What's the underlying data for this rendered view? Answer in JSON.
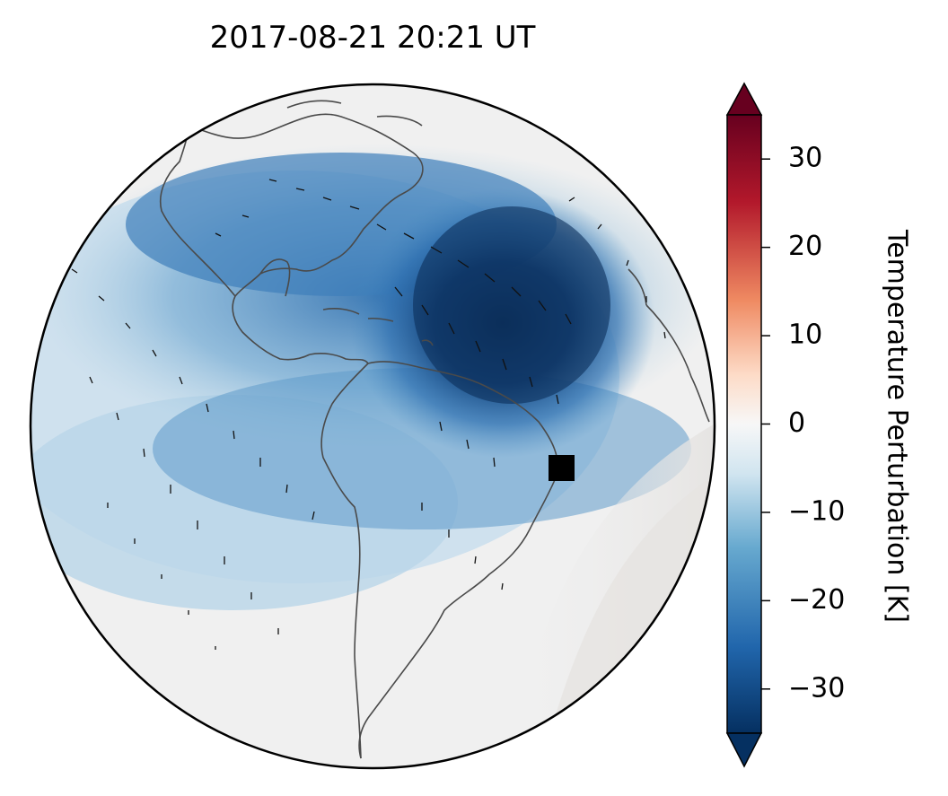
{
  "title": "2017-08-21  20:21 UT",
  "map": {
    "projection": "orthographic",
    "features": [
      "coastlines",
      "wind-vectors",
      "temperature-perturbation-field"
    ],
    "marker_shape": "square",
    "marker_color": "#000000"
  },
  "colorbar": {
    "label": "Temperature Perturbation [K]",
    "colormap": "RdBu_r",
    "range": [
      -35,
      35
    ],
    "extend": "both",
    "ticks": [
      30,
      20,
      10,
      0,
      -10,
      -20,
      -30
    ],
    "tick_labels": [
      "30",
      "20",
      "10",
      "0",
      "−10",
      "−20",
      "−30"
    ],
    "colors": {
      "max": "#67001f",
      "high": "#b2182b",
      "mid_high": "#ef8a62",
      "mid": "#f7f7f7",
      "mid_low": "#67a9cf",
      "low": "#2166ac",
      "min": "#053061"
    }
  }
}
